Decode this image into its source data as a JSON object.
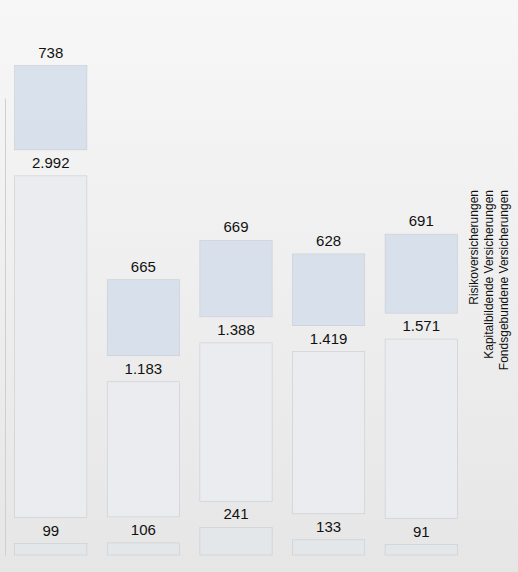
{
  "chart_data": {
    "type": "bar",
    "stacked": true,
    "data_labels": true,
    "tick_labels": false,
    "legend": "right",
    "categories": [
      null,
      null,
      null,
      null,
      null
    ],
    "ylim": [
      0,
      4000
    ],
    "yticks": [],
    "series": [
      {
        "name": "Fondsgebundene Versicherungen",
        "color": "#e4e7ea",
        "values": [
          99,
          106,
          241,
          133,
          91
        ],
        "value_labels": [
          "99",
          "106",
          "241",
          "133",
          "91"
        ]
      },
      {
        "name": "Kapitalbildende Versicherungen",
        "color": "#e9ecef",
        "values": [
          2992,
          1183,
          1388,
          1419,
          1571
        ],
        "value_labels": [
          "2.992",
          "1.183",
          "1.388",
          "1.419",
          "1.571"
        ]
      },
      {
        "name": "Risikoversicherungen",
        "color": "#d6dfea",
        "values": [
          738,
          665,
          669,
          628,
          691
        ],
        "value_labels": [
          "738",
          "665",
          "669",
          "628",
          "691"
        ]
      }
    ]
  }
}
